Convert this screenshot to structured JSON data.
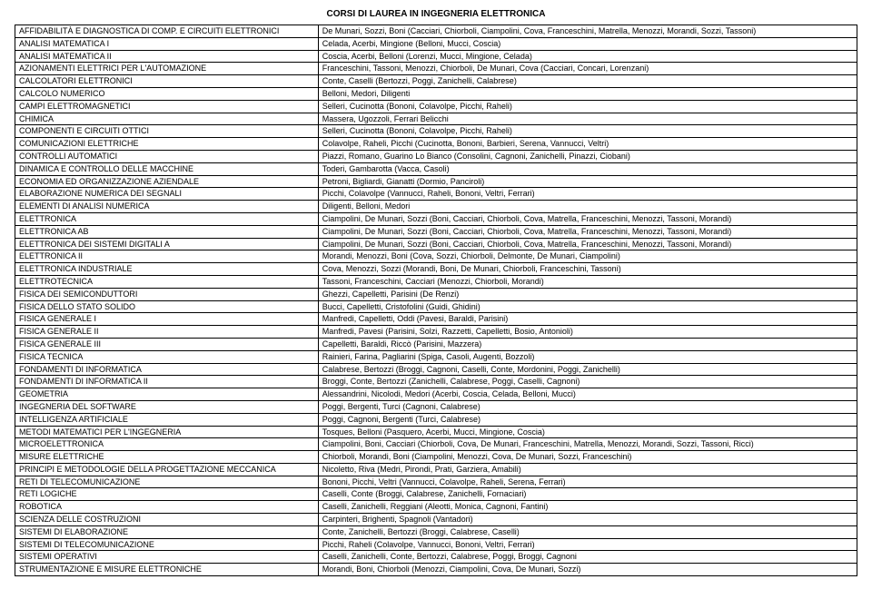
{
  "title": "CORSI DI LAUREA IN INGEGNERIA ELETTRONICA",
  "rows": [
    {
      "course": "AFFIDABILITÀ E DIAGNOSTICA DI COMP. E CIRCUITI ELETTRONICI",
      "instr": "De Munari, Sozzi, Boni (Cacciari, Chiorboli, Ciampolini, Cova, Franceschini, Matrella, Menozzi, Morandi, Sozzi, Tassoni)"
    },
    {
      "course": "ANALISI MATEMATICA I",
      "instr": "Celada, Acerbi, Mingione (Belloni, Mucci, Coscia)"
    },
    {
      "course": "ANALISI MATEMATICA II",
      "instr": "Coscia, Acerbi, Belloni (Lorenzi, Mucci, Mingione, Celada)"
    },
    {
      "course": "AZIONAMENTI ELETTRICI PER L'AUTOMAZIONE",
      "instr": "Franceschini, Tassoni, Menozzi, Chiorboli, De Munari, Cova (Cacciari, Concari, Lorenzani)"
    },
    {
      "course": "CALCOLATORI ELETTRONICI",
      "instr": "Conte, Caselli (Bertozzi, Poggi, Zanichelli, Calabrese)"
    },
    {
      "course": "CALCOLO NUMERICO",
      "instr": "Belloni, Medori, Diligenti"
    },
    {
      "course": "CAMPI ELETTROMAGNETICI",
      "instr": "Selleri, Cucinotta (Bononi, Colavolpe, Picchi, Raheli)"
    },
    {
      "course": "CHIMICA",
      "instr": "Massera, Ugozzoli, Ferrari Belicchi"
    },
    {
      "course": "COMPONENTI E CIRCUITI OTTICI",
      "instr": "Selleri, Cucinotta (Bononi, Colavolpe, Picchi, Raheli)"
    },
    {
      "course": "COMUNICAZIONI ELETTRICHE",
      "instr": "Colavolpe, Raheli, Picchi (Cucinotta, Bononi, Barbieri, Serena, Vannucci, Veltri)"
    },
    {
      "course": "CONTROLLI AUTOMATICI",
      "instr": "Piazzi, Romano, Guarino Lo Bianco (Consolini, Cagnoni, Zanichelli, Pinazzi, Ciobani)"
    },
    {
      "course": "DINAMICA E CONTROLLO DELLE MACCHINE",
      "instr": "Toderi, Gambarotta (Vacca, Casoli)"
    },
    {
      "course": "ECONOMIA ED ORGANIZZAZIONE AZIENDALE",
      "instr": "Petroni, Bigliardi, Gianatti (Dormio, Panciroli)"
    },
    {
      "course": "ELABORAZIONE NUMERICA DEI SEGNALI",
      "instr": "Picchi, Colavolpe (Vannucci, Raheli, Bononi, Veltri, Ferrari)"
    },
    {
      "course": "ELEMENTI DI ANALISI NUMERICA",
      "instr": "Diligenti, Belloni, Medori"
    },
    {
      "course": "ELETTRONICA",
      "instr": "Ciampolini, De Munari, Sozzi (Boni, Cacciari, Chiorboli, Cova, Matrella, Franceschini, Menozzi, Tassoni, Morandi)"
    },
    {
      "course": "ELETTRONICA AB",
      "instr": "Ciampolini, De Munari, Sozzi (Boni, Cacciari, Chiorboli, Cova, Matrella, Franceschini, Menozzi, Tassoni, Morandi)"
    },
    {
      "course": "ELETTRONICA DEI SISTEMI DIGITALI A",
      "instr": "Ciampolini, De Munari, Sozzi (Boni, Cacciari, Chiorboli, Cova, Matrella, Franceschini, Menozzi, Tassoni, Morandi)"
    },
    {
      "course": "ELETTRONICA II",
      "instr": "Morandi, Menozzi, Boni (Cova, Sozzi, Chiorboli, Delmonte, De Munari, Ciampolini)"
    },
    {
      "course": "ELETTRONICA INDUSTRIALE",
      "instr": "Cova, Menozzi, Sozzi (Morandi, Boni, De Munari, Chiorboli, Franceschini, Tassoni)"
    },
    {
      "course": "ELETTROTECNICA",
      "instr": "Tassoni, Franceschini, Cacciari (Menozzi, Chiorboli, Morandi)"
    },
    {
      "course": "FISICA DEI SEMICONDUTTORI",
      "instr": "Ghezzi, Capelletti, Parisini (De Renzi)"
    },
    {
      "course": "FISICA DELLO STATO SOLIDO",
      "instr": "Bucci, Capelletti, Cristofolini (Guidi, Ghidini)"
    },
    {
      "course": "FISICA GENERALE I",
      "instr": "Manfredi, Capelletti, Oddi (Pavesi, Baraldi, Parisini)"
    },
    {
      "course": "FISICA GENERALE II",
      "instr": "Manfredi, Pavesi (Parisini, Solzi, Razzetti, Capelletti, Bosio, Antonioli)"
    },
    {
      "course": "FISICA GENERALE III",
      "instr": "Capelletti, Baraldi, Riccò (Parisini, Mazzera)"
    },
    {
      "course": "FISICA TECNICA",
      "instr": "Rainieri, Farina, Pagliarini (Spiga, Casoli, Augenti, Bozzoli)"
    },
    {
      "course": "FONDAMENTI DI INFORMATICA",
      "instr": "Calabrese, Bertozzi (Broggi, Cagnoni, Caselli, Conte, Mordonini, Poggi, Zanichelli)"
    },
    {
      "course": "FONDAMENTI DI INFORMATICA II",
      "instr": "Broggi, Conte, Bertozzi (Zanichelli, Calabrese, Poggi, Caselli, Cagnoni)"
    },
    {
      "course": "GEOMETRIA",
      "instr": "Alessandrini, Nicolodi, Medori (Acerbi, Coscia, Celada, Belloni, Mucci)"
    },
    {
      "course": "INGEGNERIA DEL SOFTWARE",
      "instr": "Poggi, Bergenti, Turci (Cagnoni, Calabrese)"
    },
    {
      "course": "INTELLIGENZA ARTIFICIALE",
      "instr": "Poggi, Cagnoni, Bergenti (Turci, Calabrese)"
    },
    {
      "course": "METODI MATEMATICI PER L'INGEGNERIA",
      "instr": "Tosques, Belloni (Pasquero, Acerbi, Mucci, Mingione, Coscia)"
    },
    {
      "course": "MICROELETTRONICA",
      "instr": "Ciampolini, Boni, Cacciari (Chiorboli, Cova, De Munari, Franceschini, Matrella, Menozzi, Morandi, Sozzi, Tassoni, Ricci)"
    },
    {
      "course": "MISURE ELETTRICHE",
      "instr": "Chiorboli, Morandi, Boni (Ciampolini, Menozzi, Cova, De Munari, Sozzi, Franceschini)"
    },
    {
      "course": "PRINCIPI E METODOLOGIE DELLA PROGETTAZIONE MECCANICA",
      "instr": "Nicoletto, Riva (Medri, Pirondi, Prati, Garziera, Amabili)"
    },
    {
      "course": "RETI DI TELECOMUNICAZIONE",
      "instr": "Bononi, Picchi, Veltri (Vannucci, Colavolpe, Raheli, Serena, Ferrari)"
    },
    {
      "course": "RETI LOGICHE",
      "instr": "Caselli, Conte (Broggi, Calabrese, Zanichelli, Fornaciari)"
    },
    {
      "course": "ROBOTICA",
      "instr": "Caselli, Zanichelli, Reggiani (Aleotti, Monica, Cagnoni, Fantini)"
    },
    {
      "course": "SCIENZA DELLE COSTRUZIONI",
      "instr": "Carpinteri, Brighenti, Spagnoli (Vantadori)"
    },
    {
      "course": "SISTEMI DI ELABORAZIONE",
      "instr": "Conte, Zanichelli, Bertozzi (Broggi, Calabrese, Caselli)"
    },
    {
      "course": "SISTEMI DI TELECOMUNICAZIONE",
      "instr": "Picchi, Raheli (Colavolpe, Vannucci, Bononi, Veltri, Ferrari)"
    },
    {
      "course": "SISTEMI OPERATIVI",
      "instr": "Caselli, Zanichelli, Conte, Bertozzi, Calabrese, Poggi, Broggi, Cagnoni"
    },
    {
      "course": "STRUMENTAZIONE E MISURE ELETTRONICHE",
      "instr": "Morandi, Boni, Chiorboli (Menozzi, Ciampolini, Cova, De Munari, Sozzi)"
    }
  ]
}
